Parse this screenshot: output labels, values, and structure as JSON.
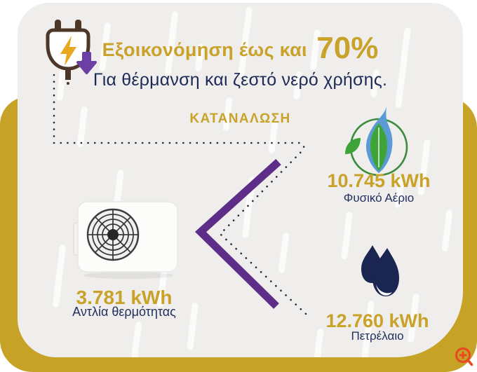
{
  "header": {
    "title_prefix": "Εξοικονόμηση έως και",
    "title_percent": "70%",
    "subtitle": "Για θέρμανση και ζεστό νερό χρήσης.",
    "section_label": "ΚΑΤΑΝΑΛΩΣΗ"
  },
  "comparison": {
    "heat_pump": {
      "value": "3.781 kWh",
      "label": "Αντλία θερμότητας",
      "icon": "heat-pump-unit-icon"
    },
    "natural_gas": {
      "value": "10.745 kWh",
      "label": "Φυσικό Αέριο",
      "icon": "eco-gas-flame-icon"
    },
    "oil": {
      "value": "12.760 kWh",
      "label": "Πετρέλαιο",
      "icon": "oil-drops-icon"
    }
  },
  "decorations": {
    "plug_icon": "power-plug-lightning-arrow-icon",
    "magnifier_icon": "zoom-in-icon",
    "chevron": "less-than-comparison-chevron",
    "dotted_path": "energy-flow-dotted-line"
  },
  "colors": {
    "gold": "#C6A227",
    "gold_text": "#C9A22A",
    "navy": "#1E2A57",
    "purple": "#5D2D87",
    "flame_blue": "#5B9BD5",
    "leaf_green": "#3EA437",
    "drop_navy": "#1A2551",
    "magnifier_orange": "#E8491F",
    "card_bg": "#EFEEEC"
  }
}
